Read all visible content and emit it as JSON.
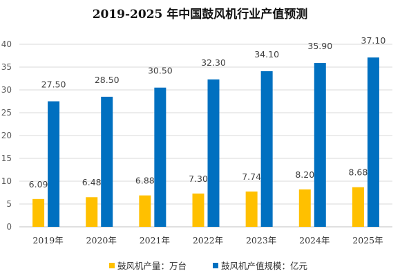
{
  "chart_data": {
    "type": "bar",
    "title": "2019-2025 年中国鼓风机行业产值预测",
    "categories": [
      "2019年",
      "2020年",
      "2021年",
      "2022年",
      "2023年",
      "2024年",
      "2025年"
    ],
    "series": [
      {
        "name": "鼓风机产量：万台",
        "color": "#FFC000",
        "values": [
          6.09,
          6.48,
          6.88,
          7.3,
          7.74,
          8.2,
          8.68
        ],
        "labels": [
          "6.09",
          "6.48",
          "6.88",
          "7.30",
          "7.74",
          "8.20",
          "8.68"
        ]
      },
      {
        "name": "鼓风机产值规模：亿元",
        "color": "#0070C0",
        "values": [
          27.5,
          28.5,
          30.5,
          32.3,
          34.1,
          35.9,
          37.1
        ],
        "labels": [
          "27.50",
          "28.50",
          "30.50",
          "32.30",
          "34.10",
          "35.90",
          "37.10"
        ]
      }
    ],
    "ylim": [
      0,
      40
    ],
    "yticks": [
      0,
      5,
      10,
      15,
      20,
      25,
      30,
      35,
      40
    ],
    "grid": true,
    "legend_position": "bottom"
  }
}
